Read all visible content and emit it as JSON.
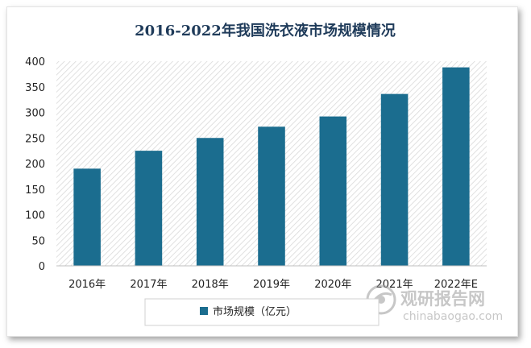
{
  "chart_data": {
    "type": "bar",
    "title": "2016-2022年我国洗衣液市场规模情况",
    "categories": [
      "2016年",
      "2017年",
      "2018年",
      "2019年",
      "2020年",
      "2021年",
      "2022年E"
    ],
    "series": [
      {
        "name": "市场规模（亿元）",
        "values": [
          190,
          225,
          250,
          272,
          292,
          336,
          388
        ]
      }
    ],
    "ylim": [
      0,
      400
    ],
    "yticks": [
      0,
      50,
      100,
      150,
      200,
      250,
      300,
      350,
      400
    ],
    "xlabel": "",
    "ylabel": "",
    "grid": false,
    "plot_background": "diagonal-hatch",
    "legend_position": "bottom",
    "bar_color": "#1b6d8f"
  },
  "watermark": {
    "cn": "观研报告网",
    "url": "chinabaogao.com"
  }
}
